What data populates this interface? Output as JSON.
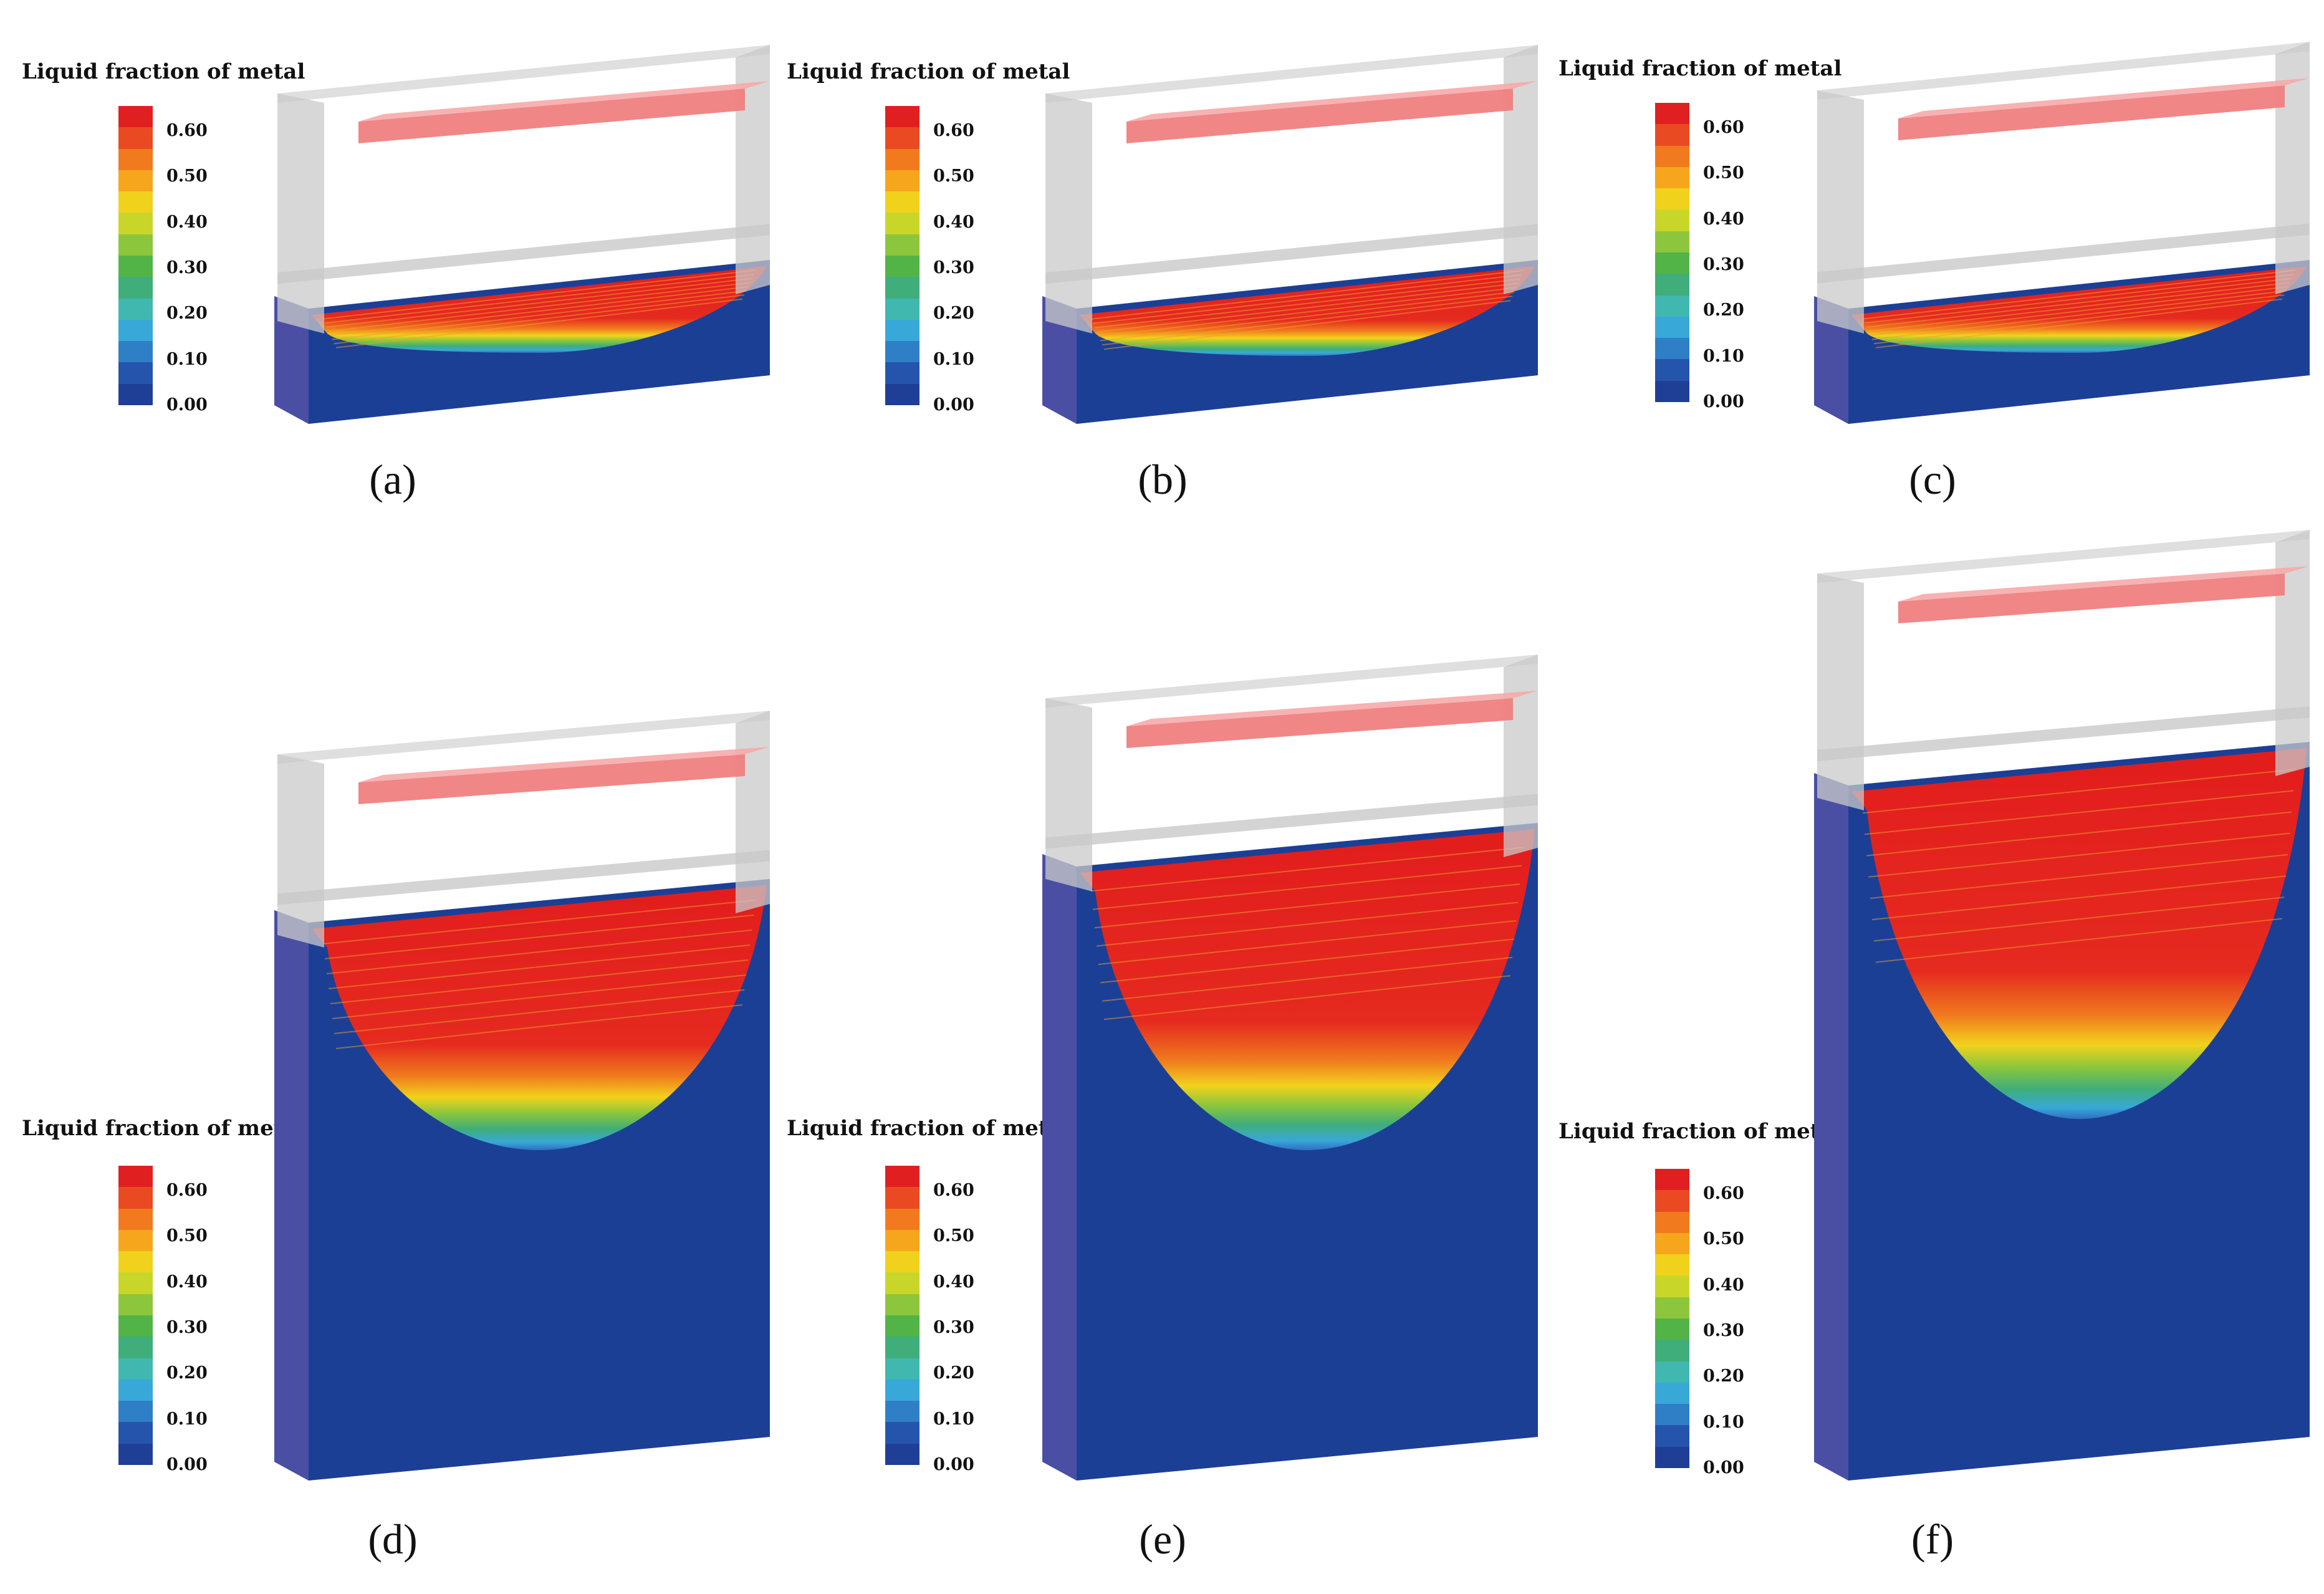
{
  "legend": {
    "title": "Liquid fraction of metal",
    "ticks": [
      "0.60",
      "0.50",
      "0.40",
      "0.30",
      "0.20",
      "0.10",
      "0.00"
    ],
    "colors": [
      "#e02020",
      "#ea4a22",
      "#f27a1e",
      "#f6a61c",
      "#f0d21c",
      "#c8d62a",
      "#8cc63c",
      "#52b447",
      "#3fae7a",
      "#40b8b0",
      "#38a8d8",
      "#2f7fc6",
      "#2554ad",
      "#1f3f96"
    ]
  },
  "panels": [
    {
      "label": "(a)"
    },
    {
      "label": "(b)"
    },
    {
      "label": "(c)"
    },
    {
      "label": "(d)"
    },
    {
      "label": "(e)"
    },
    {
      "label": "(f)"
    }
  ],
  "colors": {
    "frame": "#c9c9c9",
    "electrode": "#f08080",
    "solid": "#1c3f96",
    "side_face": "#4a4fa3",
    "liquid": "#e21d1d"
  }
}
